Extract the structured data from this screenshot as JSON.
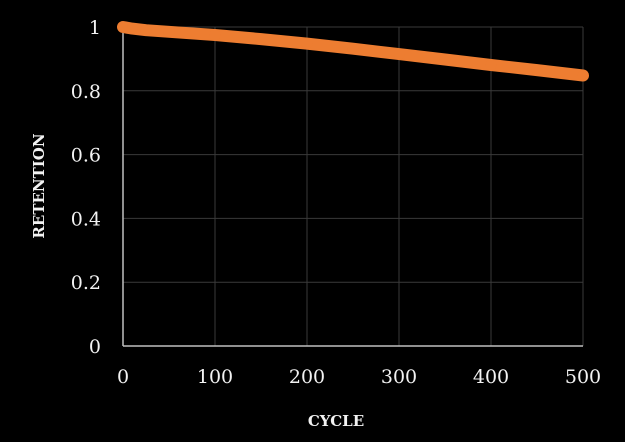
{
  "chart_data": {
    "type": "line",
    "title": "",
    "xlabel": "CYCLE",
    "ylabel": "RETENTION",
    "xlim": [
      0,
      500
    ],
    "ylim": [
      0,
      1
    ],
    "x_ticks": [
      "0",
      "100",
      "200",
      "300",
      "400",
      "500"
    ],
    "y_ticks": [
      "0",
      "0.2",
      "0.4",
      "0.6",
      "0.8",
      "1"
    ],
    "grid": true,
    "legend": "none",
    "series": [
      {
        "color": "#ED7D31",
        "x": [
          0,
          10,
          25,
          50,
          100,
          150,
          200,
          250,
          300,
          350,
          400,
          450,
          500
        ],
        "y": [
          1.0,
          0.995,
          0.99,
          0.985,
          0.975,
          0.962,
          0.948,
          0.932,
          0.915,
          0.898,
          0.881,
          0.865,
          0.848
        ]
      }
    ]
  }
}
